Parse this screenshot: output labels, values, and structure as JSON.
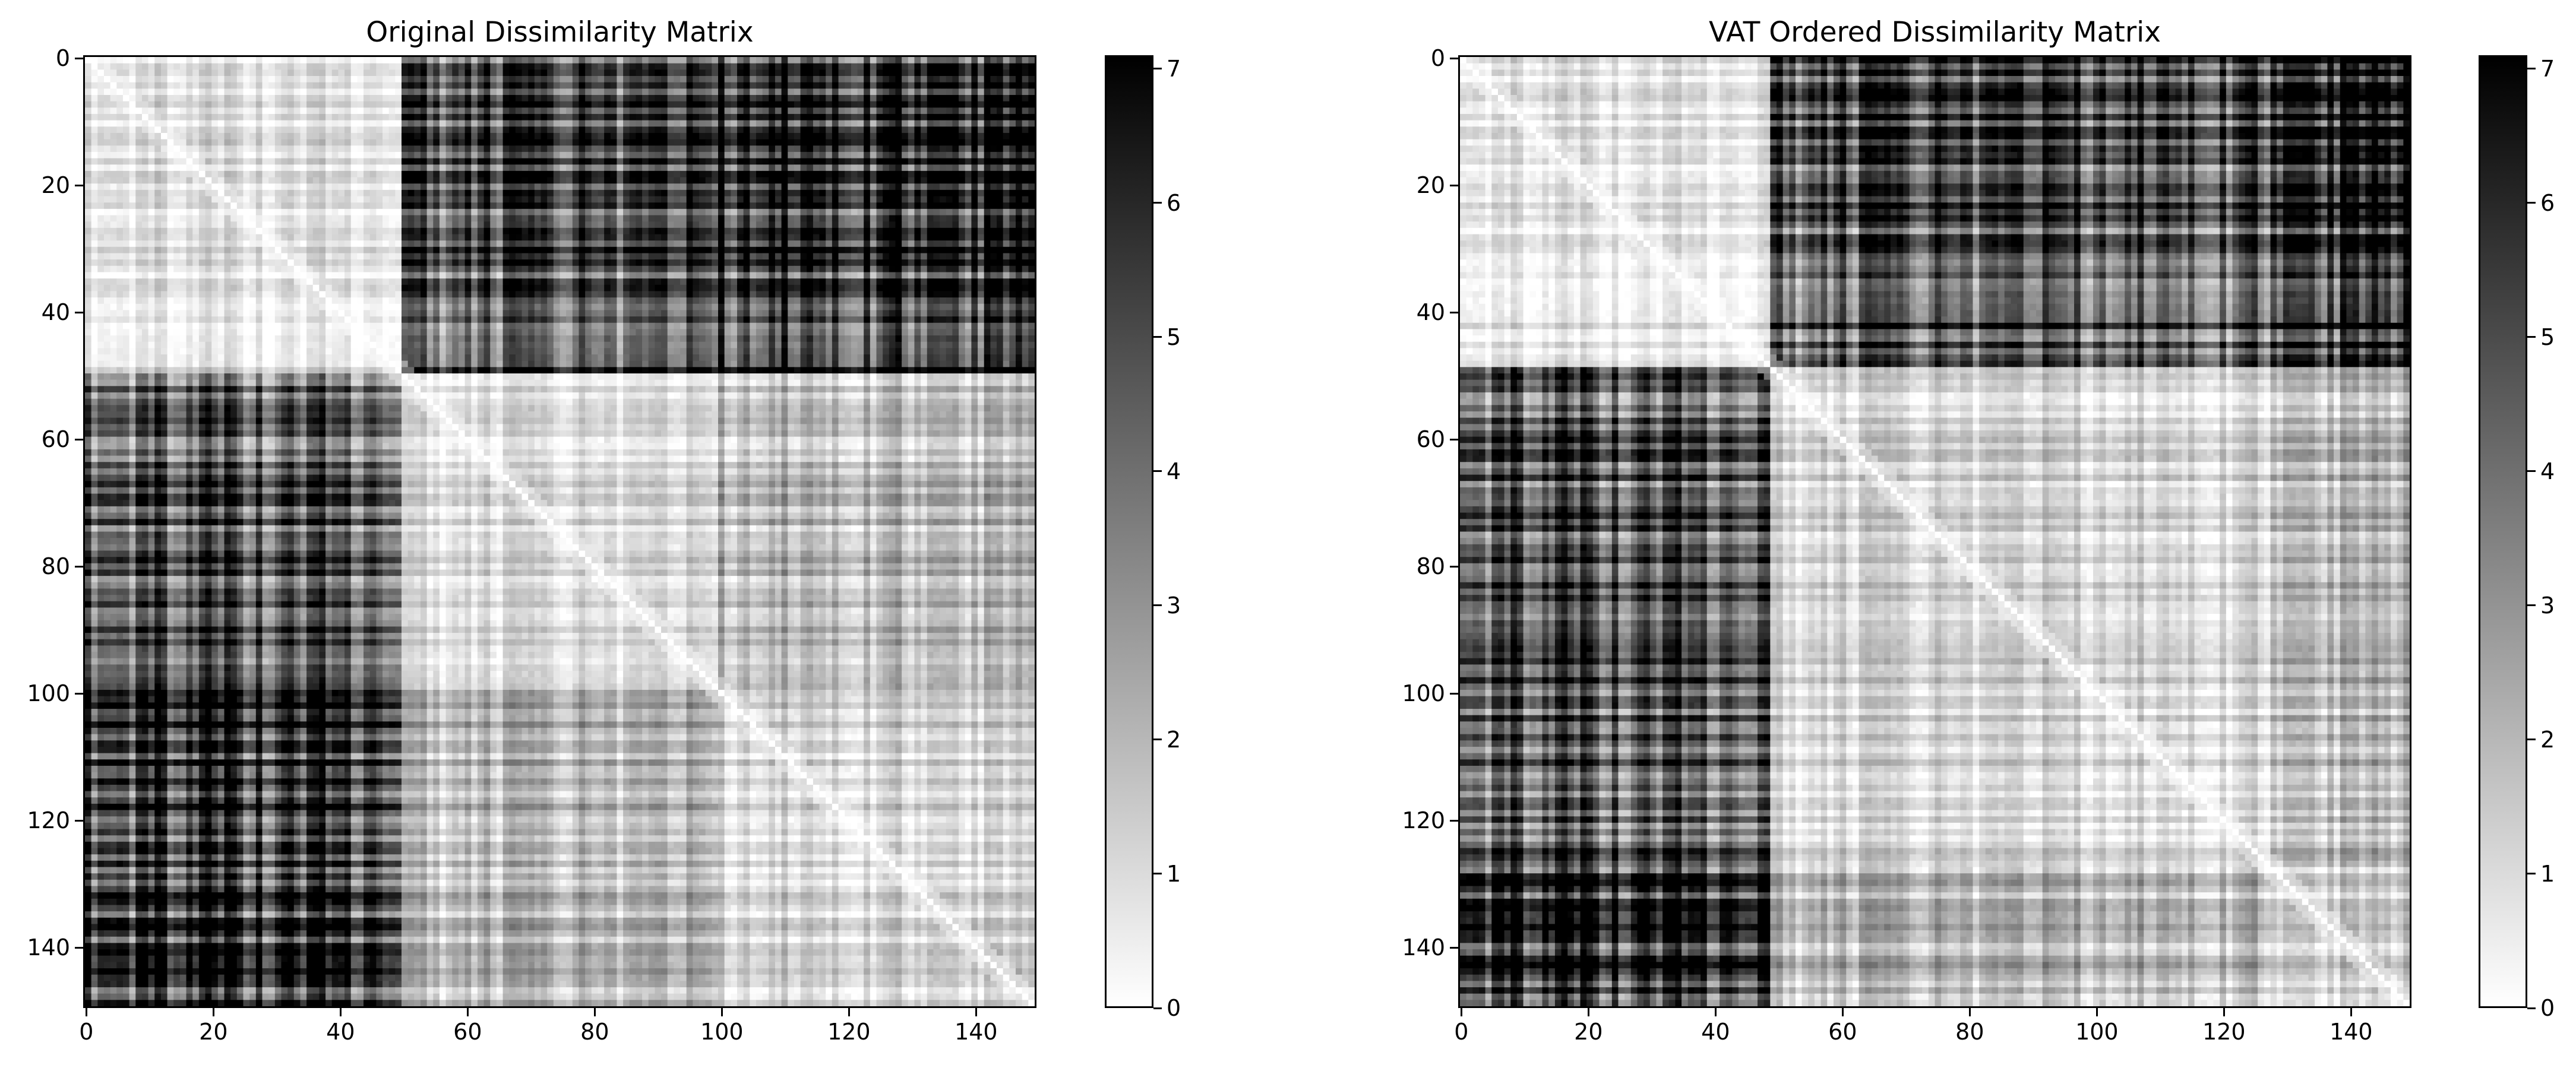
{
  "chart_data": [
    {
      "type": "heatmap",
      "title": "Original Dissimilarity Matrix",
      "colormap": "gray_r",
      "matrix_size": 150,
      "xlim": [
        0,
        150
      ],
      "ylim": [
        150,
        0
      ],
      "x_ticks": [
        0,
        20,
        40,
        60,
        80,
        100,
        120,
        140
      ],
      "y_ticks": [
        0,
        20,
        40,
        60,
        80,
        100,
        120,
        140
      ],
      "blocks": [
        {
          "rows": [
            0,
            50
          ],
          "cols": [
            0,
            50
          ],
          "level": 0.8
        },
        {
          "rows": [
            0,
            50
          ],
          "cols": [
            50,
            100
          ],
          "level": 4.6
        },
        {
          "rows": [
            0,
            50
          ],
          "cols": [
            100,
            150
          ],
          "level": 5.8
        },
        {
          "rows": [
            50,
            100
          ],
          "cols": [
            0,
            50
          ],
          "level": 4.6
        },
        {
          "rows": [
            50,
            100
          ],
          "cols": [
            50,
            100
          ],
          "level": 0.9
        },
        {
          "rows": [
            50,
            100
          ],
          "cols": [
            100,
            150
          ],
          "level": 1.9
        },
        {
          "rows": [
            100,
            150
          ],
          "cols": [
            0,
            50
          ],
          "level": 5.8
        },
        {
          "rows": [
            100,
            150
          ],
          "cols": [
            50,
            100
          ],
          "level": 1.9
        },
        {
          "rows": [
            100,
            150
          ],
          "cols": [
            100,
            150
          ],
          "level": 1.2
        }
      ],
      "colorbar": {
        "vmin": 0,
        "vmax": 7.1,
        "ticks": [
          0,
          1,
          2,
          3,
          4,
          5,
          6,
          7
        ]
      }
    },
    {
      "type": "heatmap",
      "title": "VAT Ordered Dissimilarity Matrix",
      "colormap": "gray_r",
      "matrix_size": 150,
      "xlim": [
        0,
        150
      ],
      "ylim": [
        150,
        0
      ],
      "x_ticks": [
        0,
        20,
        40,
        60,
        80,
        100,
        120,
        140
      ],
      "y_ticks": [
        0,
        20,
        40,
        60,
        80,
        100,
        120,
        140
      ],
      "blocks": [
        {
          "rows": [
            0,
            49
          ],
          "cols": [
            0,
            49
          ],
          "level": 0.7
        },
        {
          "rows": [
            0,
            49
          ],
          "cols": [
            49,
            128
          ],
          "level": 4.7
        },
        {
          "rows": [
            0,
            49
          ],
          "cols": [
            128,
            150
          ],
          "level": 6.0
        },
        {
          "rows": [
            49,
            128
          ],
          "cols": [
            0,
            49
          ],
          "level": 4.7
        },
        {
          "rows": [
            49,
            128
          ],
          "cols": [
            49,
            128
          ],
          "level": 1.1
        },
        {
          "rows": [
            49,
            128
          ],
          "cols": [
            128,
            150
          ],
          "level": 1.9
        },
        {
          "rows": [
            128,
            150
          ],
          "cols": [
            0,
            49
          ],
          "level": 6.0
        },
        {
          "rows": [
            128,
            150
          ],
          "cols": [
            49,
            128
          ],
          "level": 1.9
        },
        {
          "rows": [
            128,
            150
          ],
          "cols": [
            128,
            150
          ],
          "level": 1.3
        }
      ],
      "colorbar": {
        "vmin": 0,
        "vmax": 7.1,
        "ticks": [
          0,
          1,
          2,
          3,
          4,
          5,
          6,
          7
        ]
      }
    }
  ]
}
